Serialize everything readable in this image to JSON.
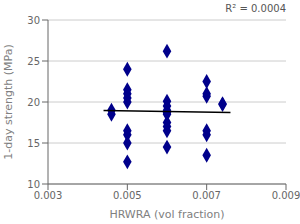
{
  "chart_data": {
    "type": "scatter",
    "xlabel": "HRWRA (vol fraction)",
    "ylabel": "1-day strength (MPa)",
    "annotation": "R² = 0.0004",
    "xlim": [
      0.003,
      0.009
    ],
    "ylim": [
      10,
      30
    ],
    "xticks": [
      0.003,
      0.005,
      0.007,
      0.009
    ],
    "yticks": [
      10,
      15,
      20,
      25,
      30
    ],
    "grid": "y",
    "series": [
      {
        "type": "scatter",
        "color": "#00008B",
        "marker": "diamond",
        "x": [
          0.0046,
          0.0046,
          0.005,
          0.005,
          0.005,
          0.005,
          0.005,
          0.005,
          0.005,
          0.005,
          0.005,
          0.006,
          0.006,
          0.006,
          0.006,
          0.006,
          0.006,
          0.006,
          0.006,
          0.006,
          0.006,
          0.007,
          0.007,
          0.007,
          0.007,
          0.007,
          0.007,
          0.0074,
          0.0074
        ],
        "values": [
          19.0,
          18.5,
          24.0,
          21.5,
          21.0,
          20.5,
          20.0,
          16.5,
          16.0,
          15.0,
          12.7,
          26.2,
          20.1,
          19.5,
          19.0,
          18.7,
          18.5,
          17.5,
          17.0,
          16.5,
          14.5,
          22.5,
          21.0,
          20.7,
          16.5,
          16.0,
          13.5,
          19.8,
          19.7
        ]
      },
      {
        "type": "line",
        "color": "#000000",
        "x": [
          0.0044,
          0.0076
        ],
        "values": [
          18.95,
          18.72
        ]
      }
    ]
  }
}
